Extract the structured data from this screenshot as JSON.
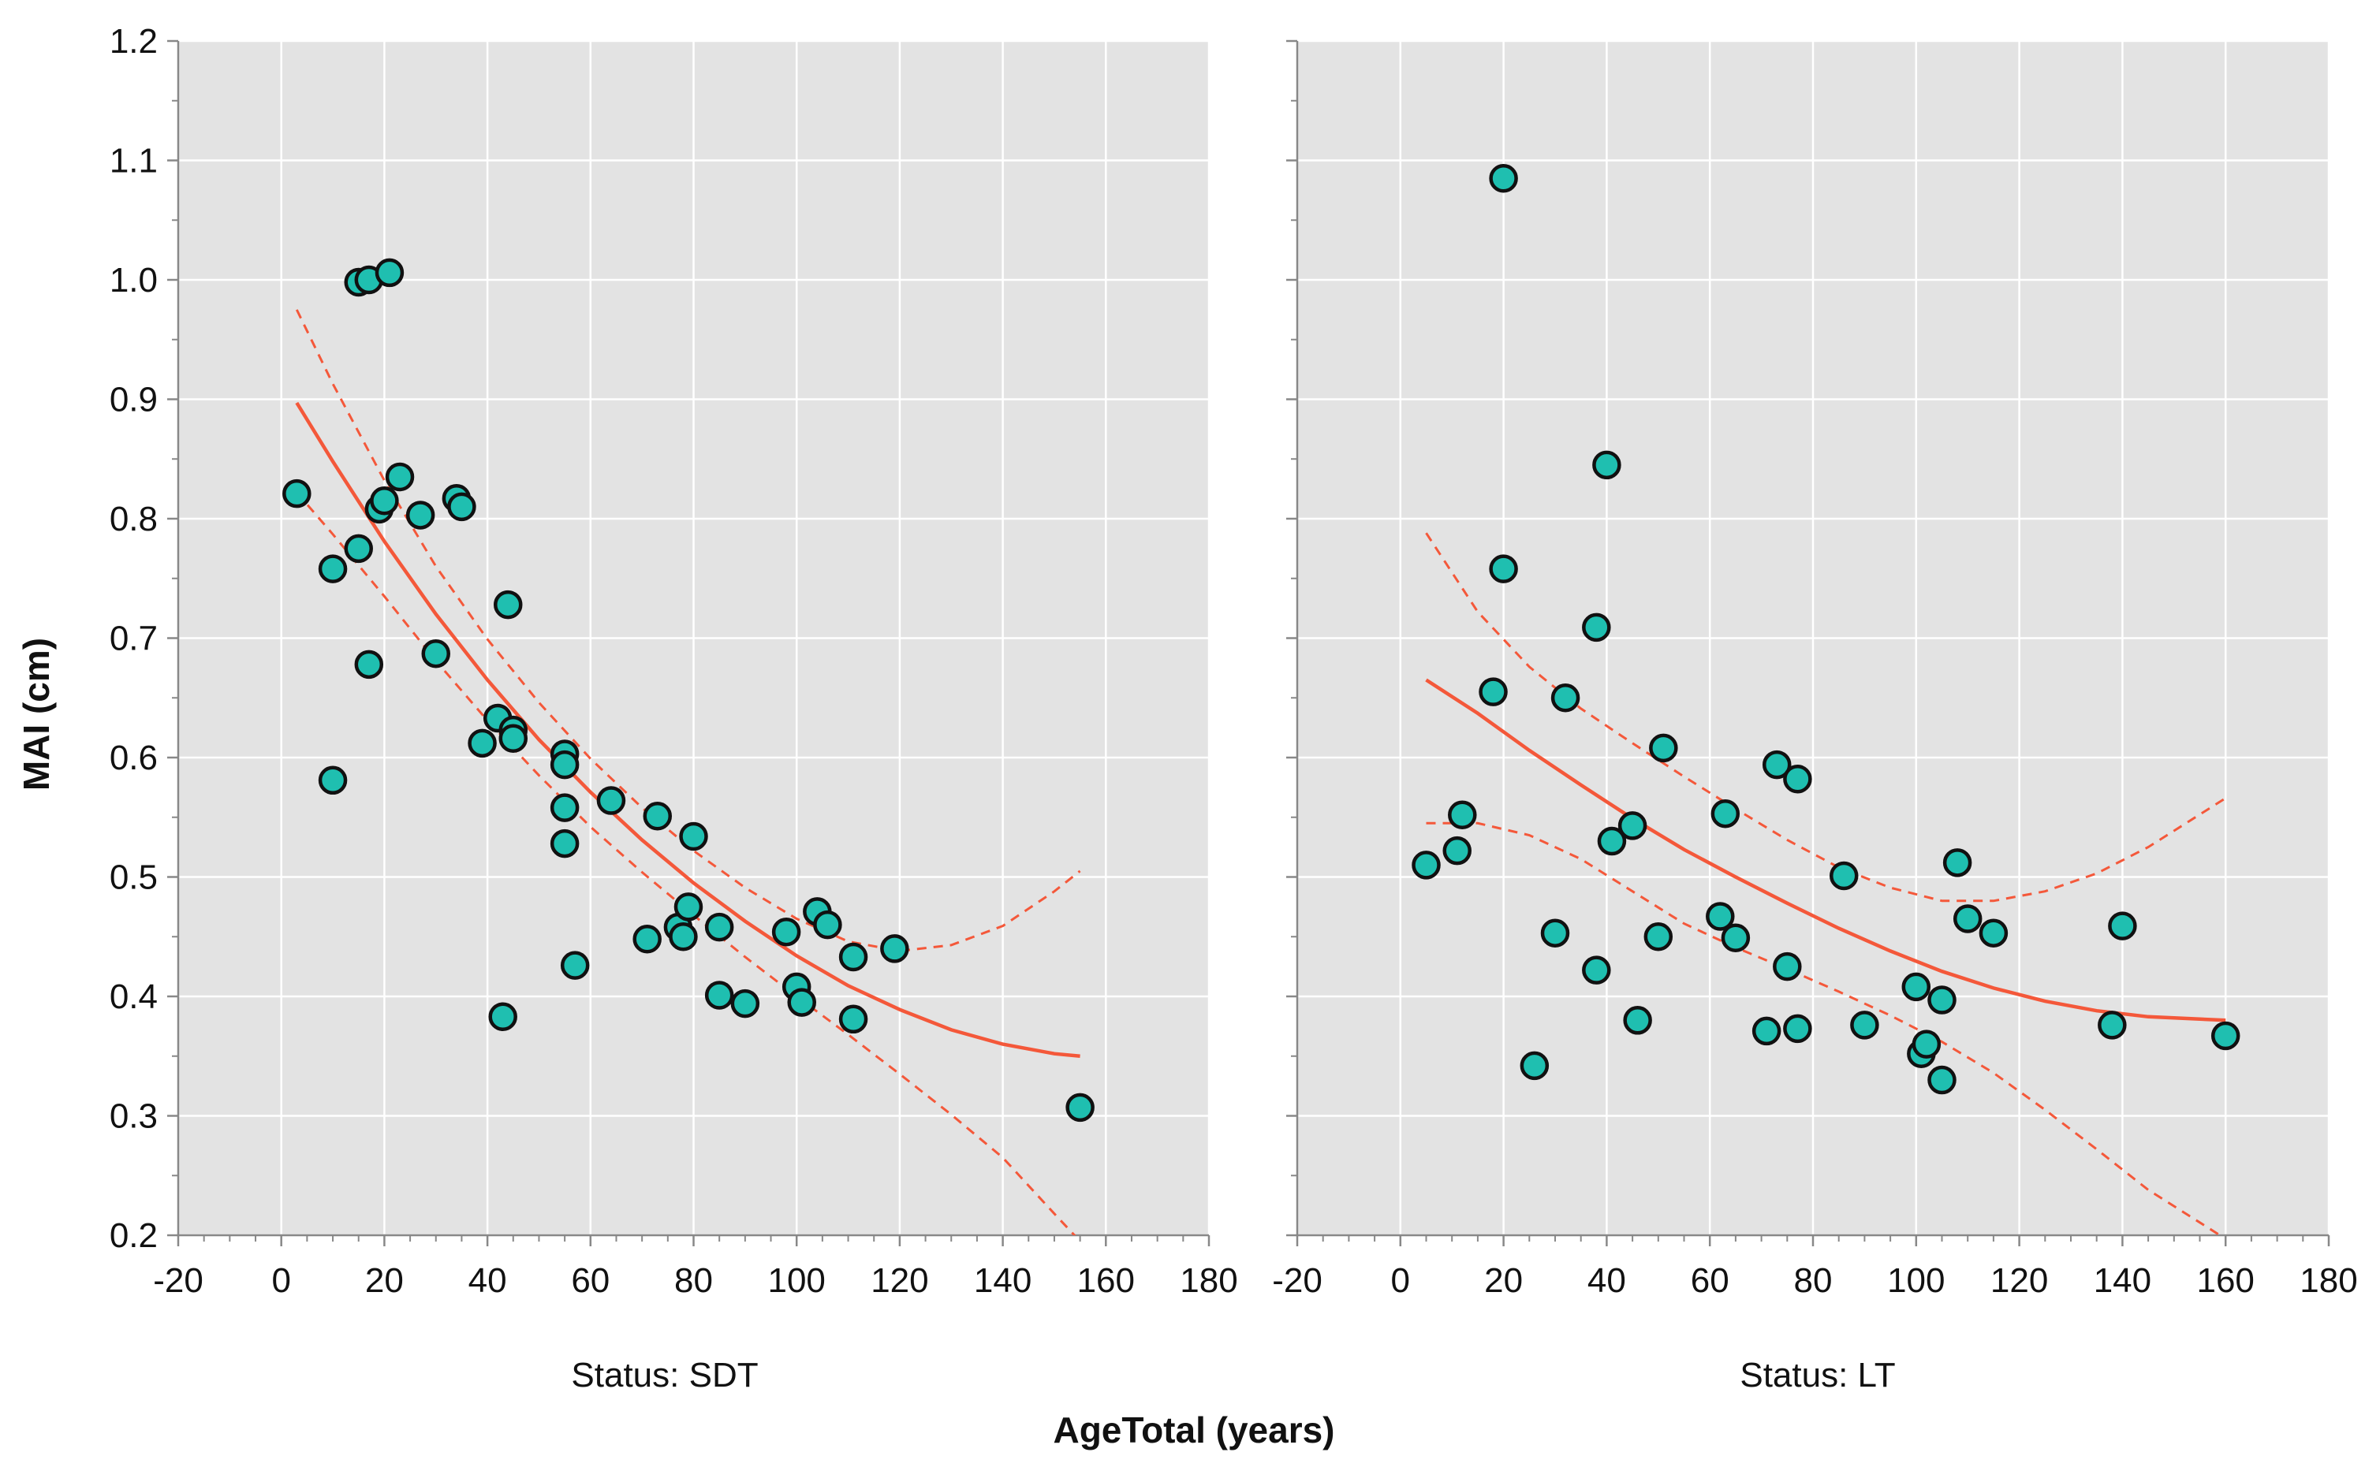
{
  "chart_data": {
    "type": "scatter",
    "ylabel": "MAI (cm)",
    "xlabel": "AgeTotal (years)",
    "xlim": [
      -20,
      180
    ],
    "ylim": [
      0.2,
      1.2
    ],
    "x_ticks": [
      -20,
      0,
      20,
      40,
      60,
      80,
      100,
      120,
      140,
      160,
      180
    ],
    "x_tick_labels": [
      "-20",
      "0",
      "20",
      "40",
      "60",
      "80",
      "100",
      "120",
      "140",
      "160",
      "180"
    ],
    "y_ticks": [
      0.2,
      0.3,
      0.4,
      0.5,
      0.6,
      0.7,
      0.8,
      0.9,
      1.0,
      1.1,
      1.2
    ],
    "y_tick_labels": [
      "0.2",
      "0.3",
      "0.4",
      "0.5",
      "0.6",
      "0.7",
      "0.8",
      "0.9",
      "1.0",
      "1.1",
      "1.2"
    ],
    "grid": true,
    "colors": {
      "panel_bg": "#e3e3e3",
      "grid": "#ffffff",
      "point_fill": "#1fbfb0",
      "point_stroke": "#111111",
      "fit_line": "#f4583a",
      "axis": "#888888"
    },
    "panels": [
      {
        "label": "Status: SDT",
        "points": [
          {
            "x": 3,
            "y": 0.821
          },
          {
            "x": 10,
            "y": 0.758
          },
          {
            "x": 10,
            "y": 0.581
          },
          {
            "x": 15,
            "y": 0.998
          },
          {
            "x": 17,
            "y": 1.0
          },
          {
            "x": 21,
            "y": 1.006
          },
          {
            "x": 15,
            "y": 0.775
          },
          {
            "x": 17,
            "y": 0.678
          },
          {
            "x": 19,
            "y": 0.808
          },
          {
            "x": 20,
            "y": 0.815
          },
          {
            "x": 23,
            "y": 0.835
          },
          {
            "x": 27,
            "y": 0.803
          },
          {
            "x": 30,
            "y": 0.687
          },
          {
            "x": 34,
            "y": 0.817
          },
          {
            "x": 35,
            "y": 0.81
          },
          {
            "x": 39,
            "y": 0.612
          },
          {
            "x": 42,
            "y": 0.633
          },
          {
            "x": 43,
            "y": 0.383
          },
          {
            "x": 44,
            "y": 0.728
          },
          {
            "x": 45,
            "y": 0.623
          },
          {
            "x": 45,
            "y": 0.616
          },
          {
            "x": 55,
            "y": 0.603
          },
          {
            "x": 55,
            "y": 0.594
          },
          {
            "x": 55,
            "y": 0.558
          },
          {
            "x": 55,
            "y": 0.528
          },
          {
            "x": 57,
            "y": 0.426
          },
          {
            "x": 64,
            "y": 0.564
          },
          {
            "x": 71,
            "y": 0.448
          },
          {
            "x": 73,
            "y": 0.551
          },
          {
            "x": 77,
            "y": 0.458
          },
          {
            "x": 78,
            "y": 0.45
          },
          {
            "x": 79,
            "y": 0.475
          },
          {
            "x": 80,
            "y": 0.534
          },
          {
            "x": 85,
            "y": 0.458
          },
          {
            "x": 85,
            "y": 0.401
          },
          {
            "x": 90,
            "y": 0.394
          },
          {
            "x": 98,
            "y": 0.454
          },
          {
            "x": 100,
            "y": 0.408
          },
          {
            "x": 101,
            "y": 0.395
          },
          {
            "x": 104,
            "y": 0.471
          },
          {
            "x": 106,
            "y": 0.46
          },
          {
            "x": 111,
            "y": 0.433
          },
          {
            "x": 111,
            "y": 0.381
          },
          {
            "x": 119,
            "y": 0.44
          },
          {
            "x": 155,
            "y": 0.307
          }
        ],
        "fit": {
          "x": [
            3,
            10,
            20,
            30,
            40,
            50,
            60,
            70,
            80,
            90,
            100,
            110,
            120,
            130,
            140,
            150,
            155
          ],
          "y": [
            0.897,
            0.848,
            0.781,
            0.72,
            0.665,
            0.615,
            0.571,
            0.531,
            0.495,
            0.463,
            0.434,
            0.409,
            0.389,
            0.372,
            0.36,
            0.352,
            0.35
          ]
        },
        "ci_upper": {
          "x": [
            3,
            10,
            20,
            30,
            40,
            50,
            60,
            70,
            80,
            90,
            100,
            110,
            120,
            130,
            140,
            150,
            155
          ],
          "y": [
            0.975,
            0.913,
            0.832,
            0.76,
            0.699,
            0.646,
            0.599,
            0.558,
            0.522,
            0.491,
            0.465,
            0.446,
            0.438,
            0.443,
            0.459,
            0.488,
            0.505
          ]
        },
        "ci_lower": {
          "x": [
            3,
            10,
            20,
            30,
            40,
            50,
            60,
            70,
            80,
            90,
            100,
            110,
            120,
            130,
            140,
            150,
            155
          ],
          "y": [
            0.822,
            0.787,
            0.735,
            0.681,
            0.631,
            0.585,
            0.542,
            0.504,
            0.468,
            0.433,
            0.4,
            0.368,
            0.335,
            0.301,
            0.265,
            0.218,
            0.195
          ]
        }
      },
      {
        "label": "Status: LT",
        "points": [
          {
            "x": 5,
            "y": 0.51
          },
          {
            "x": 11,
            "y": 0.522
          },
          {
            "x": 12,
            "y": 0.552
          },
          {
            "x": 18,
            "y": 0.655
          },
          {
            "x": 20,
            "y": 1.085
          },
          {
            "x": 20,
            "y": 0.758
          },
          {
            "x": 26,
            "y": 0.342
          },
          {
            "x": 30,
            "y": 0.453
          },
          {
            "x": 32,
            "y": 0.65
          },
          {
            "x": 38,
            "y": 0.709
          },
          {
            "x": 38,
            "y": 0.422
          },
          {
            "x": 40,
            "y": 0.845
          },
          {
            "x": 41,
            "y": 0.53
          },
          {
            "x": 45,
            "y": 0.543
          },
          {
            "x": 46,
            "y": 0.38
          },
          {
            "x": 50,
            "y": 0.45
          },
          {
            "x": 51,
            "y": 0.608
          },
          {
            "x": 62,
            "y": 0.467
          },
          {
            "x": 63,
            "y": 0.553
          },
          {
            "x": 65,
            "y": 0.449
          },
          {
            "x": 71,
            "y": 0.371
          },
          {
            "x": 73,
            "y": 0.594
          },
          {
            "x": 75,
            "y": 0.425
          },
          {
            "x": 77,
            "y": 0.582
          },
          {
            "x": 77,
            "y": 0.373
          },
          {
            "x": 86,
            "y": 0.501
          },
          {
            "x": 90,
            "y": 0.376
          },
          {
            "x": 100,
            "y": 0.408
          },
          {
            "x": 101,
            "y": 0.352
          },
          {
            "x": 102,
            "y": 0.36
          },
          {
            "x": 105,
            "y": 0.397
          },
          {
            "x": 105,
            "y": 0.33
          },
          {
            "x": 108,
            "y": 0.512
          },
          {
            "x": 110,
            "y": 0.465
          },
          {
            "x": 115,
            "y": 0.453
          },
          {
            "x": 138,
            "y": 0.376
          },
          {
            "x": 140,
            "y": 0.459
          },
          {
            "x": 160,
            "y": 0.367
          }
        ],
        "fit": {
          "x": [
            5,
            15,
            25,
            35,
            45,
            55,
            65,
            75,
            85,
            95,
            105,
            115,
            125,
            135,
            145,
            160
          ],
          "y": [
            0.665,
            0.637,
            0.606,
            0.577,
            0.549,
            0.523,
            0.5,
            0.478,
            0.457,
            0.438,
            0.421,
            0.407,
            0.396,
            0.388,
            0.383,
            0.38
          ]
        },
        "ci_upper": {
          "x": [
            5,
            15,
            25,
            35,
            45,
            55,
            65,
            75,
            85,
            95,
            105,
            115,
            125,
            135,
            145,
            160
          ],
          "y": [
            0.788,
            0.722,
            0.676,
            0.641,
            0.612,
            0.584,
            0.557,
            0.531,
            0.508,
            0.491,
            0.48,
            0.48,
            0.488,
            0.503,
            0.525,
            0.566
          ]
        },
        "ci_lower": {
          "x": [
            5,
            15,
            25,
            35,
            45,
            55,
            65,
            75,
            85,
            95,
            105,
            115,
            125,
            135,
            145,
            160
          ],
          "y": [
            0.545,
            0.545,
            0.535,
            0.515,
            0.488,
            0.461,
            0.441,
            0.423,
            0.404,
            0.384,
            0.362,
            0.336,
            0.305,
            0.272,
            0.238,
            0.197
          ]
        }
      }
    ]
  }
}
